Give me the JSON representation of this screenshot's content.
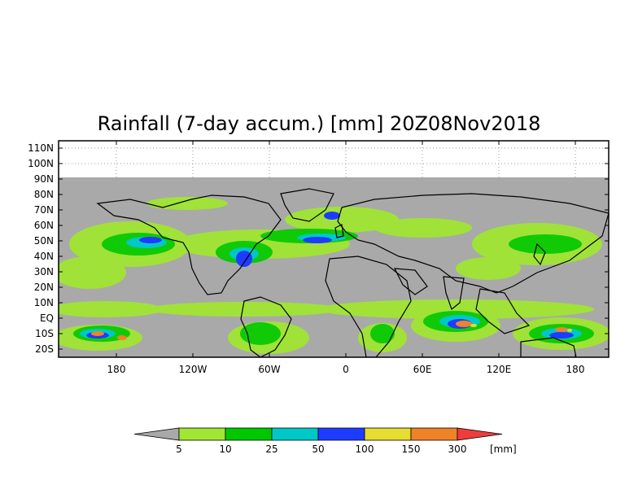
{
  "title": "Rainfall (7-day accum.) [mm] 20Z08Nov2018",
  "axes": {
    "lat_labels": [
      "110N",
      "100N",
      "90N",
      "80N",
      "70N",
      "60N",
      "50N",
      "40N",
      "30N",
      "20N",
      "10N",
      "EQ",
      "10S",
      "20S"
    ],
    "lon_labels": [
      "180",
      "120W",
      "60W",
      "0",
      "60E",
      "120E",
      "180"
    ]
  },
  "colorbar": {
    "thresholds": [
      "5",
      "10",
      "25",
      "50",
      "100",
      "150",
      "300"
    ],
    "unit": "[mm]",
    "colors": [
      "#a9a9a9",
      "#a0e632",
      "#00c800",
      "#00c8c8",
      "#1e3cff",
      "#e6dc32",
      "#f08228",
      "#f03c3c"
    ]
  },
  "colors": {
    "land_bg": "#a9a9a9",
    "outline": "#000000"
  }
}
